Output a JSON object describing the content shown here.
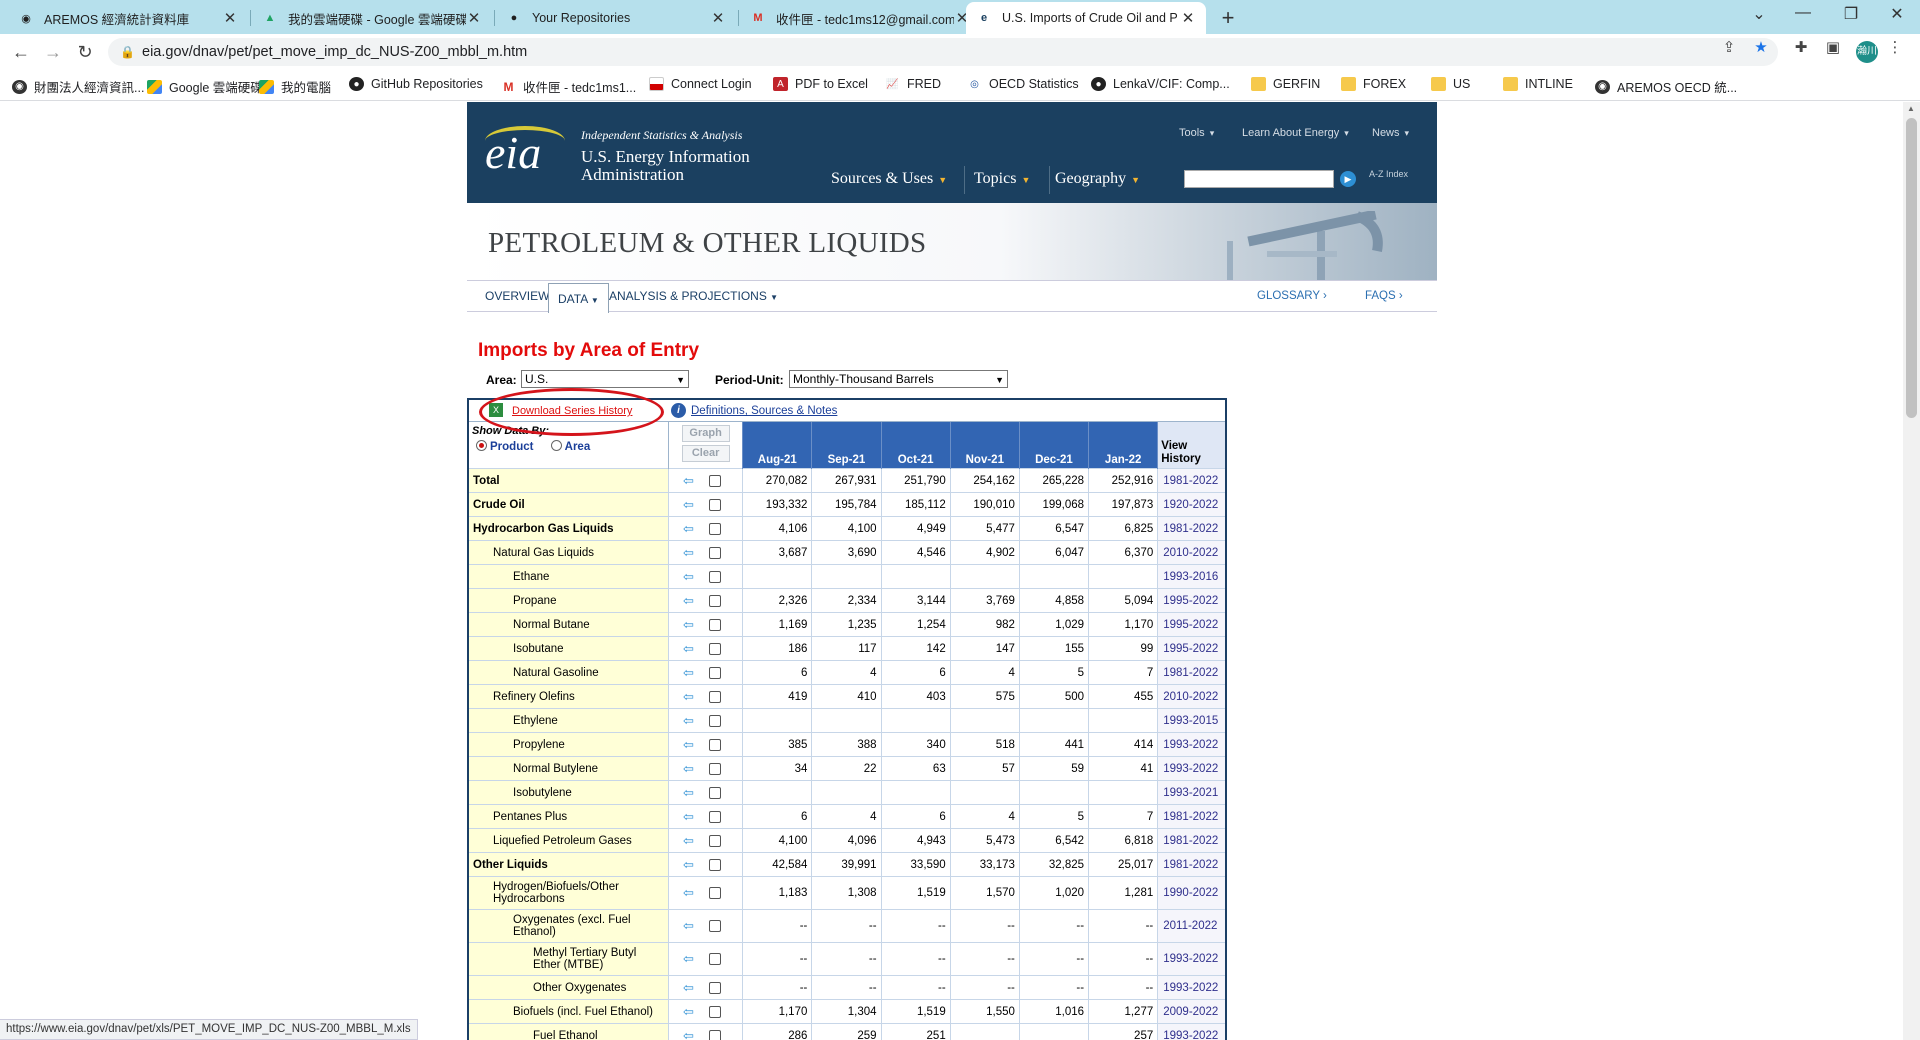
{
  "browser": {
    "tabs": [
      {
        "title": "AREMOS 經濟統計資料庫",
        "icon": "globe-icon"
      },
      {
        "title": "我的雲端硬碟 - Google 雲端硬碟",
        "icon": "google-drive-icon"
      },
      {
        "title": "Your Repositories",
        "icon": "github-icon"
      },
      {
        "title": "收件匣 - tedc1ms12@gmail.com",
        "icon": "gmail-icon"
      },
      {
        "title": "U.S. Imports of Crude Oil and P",
        "icon": "eia-icon"
      }
    ],
    "url": "eia.gov/dnav/pet/pet_move_imp_dc_NUS-Z00_mbbl_m.htm",
    "profile_initial": "瀚川",
    "bookmarks": [
      {
        "label": "財團法人經濟資訊...",
        "icon": "circle"
      },
      {
        "label": "Google 雲端硬碟",
        "icon": "gdrive"
      },
      {
        "label": "我的電腦",
        "icon": "gdrive"
      },
      {
        "label": "GitHub Repositories",
        "icon": "gh"
      },
      {
        "label": "收件匣 - tedc1ms1...",
        "icon": "gmail"
      },
      {
        "label": "Connect Login",
        "icon": "flag"
      },
      {
        "label": "PDF to Excel",
        "icon": "pdf"
      },
      {
        "label": "FRED",
        "icon": "chart"
      },
      {
        "label": "OECD Statistics",
        "icon": "oecd"
      },
      {
        "label": "LenkaV/CIF: Comp...",
        "icon": "gh"
      },
      {
        "label": "GERFIN",
        "icon": "folder"
      },
      {
        "label": "FOREX",
        "icon": "folder"
      },
      {
        "label": "US",
        "icon": "folder"
      },
      {
        "label": "INTLINE",
        "icon": "folder"
      },
      {
        "label": "AREMOS OECD 統...",
        "icon": "circle"
      }
    ],
    "status_url": "https://www.eia.gov/dnav/pet/xls/PET_MOVE_IMP_DC_NUS-Z00_MBBL_M.xls"
  },
  "eia": {
    "logo": "eia",
    "tagline": "Independent Statistics & Analysis",
    "agency": "U.S. Energy Information Administration",
    "top_nav": [
      "Tools",
      "Learn About Energy",
      "News"
    ],
    "main_nav": [
      "Sources & Uses",
      "Topics",
      "Geography"
    ],
    "az_index": "A-Z Index",
    "banner": "PETROLEUM & OTHER LIQUIDS",
    "subnav": {
      "overview": "OVERVIEW",
      "data": "DATA",
      "analysis": "ANALYSIS & PROJECTIONS",
      "glossary": "GLOSSARY",
      "faqs": "FAQS"
    }
  },
  "content": {
    "title": "Imports by Area of Entry",
    "area_label": "Area:",
    "area_value": "U.S.",
    "period_label": "Period-Unit:",
    "period_value": "Monthly-Thousand Barrels",
    "download_link": "Download Series History",
    "definitions_link": "Definitions, Sources & Notes",
    "show_by": "Show Data By:",
    "product_option": "Product",
    "area_option": "Area",
    "graph_button": "Graph",
    "clear_button": "Clear",
    "view_history": "View History",
    "months": [
      "Aug-21",
      "Sep-21",
      "Oct-21",
      "Nov-21",
      "Dec-21",
      "Jan-22"
    ],
    "rows": [
      {
        "name": "Total",
        "level": 0,
        "values": [
          "270,082",
          "267,931",
          "251,790",
          "254,162",
          "265,228",
          "252,916"
        ],
        "history": "1981-2022"
      },
      {
        "name": "Crude Oil",
        "level": 0,
        "values": [
          "193,332",
          "195,784",
          "185,112",
          "190,010",
          "199,068",
          "197,873"
        ],
        "history": "1920-2022"
      },
      {
        "name": "Hydrocarbon Gas Liquids",
        "level": 0,
        "values": [
          "4,106",
          "4,100",
          "4,949",
          "5,477",
          "6,547",
          "6,825"
        ],
        "history": "1981-2022"
      },
      {
        "name": "Natural Gas Liquids",
        "level": 1,
        "values": [
          "3,687",
          "3,690",
          "4,546",
          "4,902",
          "6,047",
          "6,370"
        ],
        "history": "2010-2022"
      },
      {
        "name": "Ethane",
        "level": 2,
        "values": [
          "",
          "",
          "",
          "",
          "",
          ""
        ],
        "history": "1993-2016"
      },
      {
        "name": "Propane",
        "level": 2,
        "values": [
          "2,326",
          "2,334",
          "3,144",
          "3,769",
          "4,858",
          "5,094"
        ],
        "history": "1995-2022"
      },
      {
        "name": "Normal Butane",
        "level": 2,
        "values": [
          "1,169",
          "1,235",
          "1,254",
          "982",
          "1,029",
          "1,170"
        ],
        "history": "1995-2022"
      },
      {
        "name": "Isobutane",
        "level": 2,
        "values": [
          "186",
          "117",
          "142",
          "147",
          "155",
          "99"
        ],
        "history": "1995-2022"
      },
      {
        "name": "Natural Gasoline",
        "level": 2,
        "values": [
          "6",
          "4",
          "6",
          "4",
          "5",
          "7"
        ],
        "history": "1981-2022"
      },
      {
        "name": "Refinery Olefins",
        "level": 1,
        "values": [
          "419",
          "410",
          "403",
          "575",
          "500",
          "455"
        ],
        "history": "2010-2022"
      },
      {
        "name": "Ethylene",
        "level": 2,
        "values": [
          "",
          "",
          "",
          "",
          "",
          ""
        ],
        "history": "1993-2015"
      },
      {
        "name": "Propylene",
        "level": 2,
        "values": [
          "385",
          "388",
          "340",
          "518",
          "441",
          "414"
        ],
        "history": "1993-2022"
      },
      {
        "name": "Normal Butylene",
        "level": 2,
        "values": [
          "34",
          "22",
          "63",
          "57",
          "59",
          "41"
        ],
        "history": "1993-2022"
      },
      {
        "name": "Isobutylene",
        "level": 2,
        "values": [
          "",
          "",
          "",
          "",
          "",
          ""
        ],
        "history": "1993-2021"
      },
      {
        "name": "Pentanes Plus",
        "level": 1,
        "values": [
          "6",
          "4",
          "6",
          "4",
          "5",
          "7"
        ],
        "history": "1981-2022"
      },
      {
        "name": "Liquefied Petroleum Gases",
        "level": 1,
        "values": [
          "4,100",
          "4,096",
          "4,943",
          "5,473",
          "6,542",
          "6,818"
        ],
        "history": "1981-2022"
      },
      {
        "name": "Other Liquids",
        "level": 0,
        "values": [
          "42,584",
          "39,991",
          "33,590",
          "33,173",
          "32,825",
          "25,017"
        ],
        "history": "1981-2022"
      },
      {
        "name": "Hydrogen/Biofuels/Other Hydrocarbons",
        "level": 1,
        "values": [
          "1,183",
          "1,308",
          "1,519",
          "1,570",
          "1,020",
          "1,281"
        ],
        "history": "1990-2022"
      },
      {
        "name": "Oxygenates (excl. Fuel Ethanol)",
        "level": 2,
        "values": [
          "--",
          "--",
          "--",
          "--",
          "--",
          "--"
        ],
        "history": "2011-2022"
      },
      {
        "name": "Methyl Tertiary Butyl Ether (MTBE)",
        "level": 3,
        "values": [
          "--",
          "--",
          "--",
          "--",
          "--",
          "--"
        ],
        "history": "1993-2022"
      },
      {
        "name": "Other Oxygenates",
        "level": 3,
        "values": [
          "--",
          "--",
          "--",
          "--",
          "--",
          "--"
        ],
        "history": "1993-2022"
      },
      {
        "name": "Biofuels (incl. Fuel Ethanol)",
        "level": 2,
        "values": [
          "1,170",
          "1,304",
          "1,519",
          "1,550",
          "1,016",
          "1,277"
        ],
        "history": "2009-2022"
      },
      {
        "name": "Fuel Ethanol",
        "level": 3,
        "values": [
          "286",
          "259",
          "251",
          "",
          "",
          "257"
        ],
        "history": "1993-2022"
      }
    ]
  }
}
